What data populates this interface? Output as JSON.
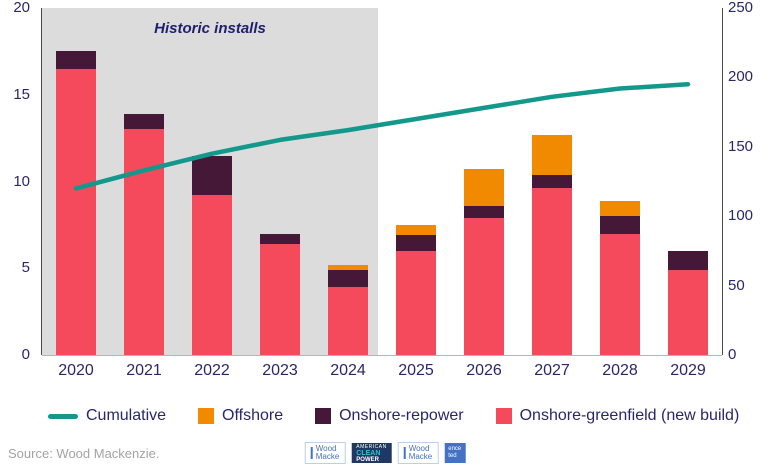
{
  "chart_data": {
    "type": "bar",
    "subtype": "stacked-bar-with-line",
    "categories": [
      "2020",
      "2021",
      "2022",
      "2023",
      "2024",
      "2025",
      "2026",
      "2027",
      "2028",
      "2029"
    ],
    "series": [
      {
        "name": "Onshore-greenfield (new build)",
        "color": "#f5495c",
        "values": [
          16.5,
          13.0,
          9.2,
          6.4,
          3.9,
          6.0,
          7.9,
          9.6,
          7.0,
          4.9
        ]
      },
      {
        "name": "Onshore-repower",
        "color": "#451838",
        "values": [
          1.0,
          0.9,
          2.3,
          0.6,
          1.0,
          0.9,
          0.7,
          0.8,
          1.0,
          1.1
        ]
      },
      {
        "name": "Offshore",
        "color": "#f18a00",
        "values": [
          0,
          0,
          0,
          0,
          0.3,
          0.6,
          2.1,
          2.3,
          0.9,
          0
        ]
      }
    ],
    "line_series": {
      "name": "Cumulative",
      "color": "#12998c",
      "axis": "right",
      "values": [
        120,
        133,
        145,
        155,
        162,
        170,
        178,
        186,
        192,
        195
      ]
    },
    "left_axis": {
      "min": 0,
      "max": 20,
      "ticks": [
        "20",
        "15",
        "10",
        "5",
        "0"
      ]
    },
    "right_axis": {
      "min": 0,
      "max": 250,
      "ticks": [
        "250",
        "200",
        "150",
        "100",
        "50",
        "0"
      ]
    },
    "historic_region": {
      "label": "Historic installs",
      "from_category": "2020",
      "to_category": "2024"
    },
    "grid": false,
    "legend_position": "bottom"
  },
  "legend": {
    "items": [
      {
        "label": "Cumulative",
        "type": "line",
        "color": "#12998c"
      },
      {
        "label": "Offshore",
        "type": "square",
        "color": "#f18a00"
      },
      {
        "label": "Onshore-repower",
        "type": "square",
        "color": "#451838"
      },
      {
        "label": "Onshore-greenfield (new build)",
        "type": "square",
        "color": "#f5495c"
      }
    ]
  },
  "footer": {
    "source": "Source: Wood Mackenzie.",
    "logos": {
      "wood_mackenzie_1": {
        "line1": "Wood",
        "line2": "Macke"
      },
      "acp": {
        "line1": "AMERICAN",
        "line2": "CLEAN",
        "line3": "POWER"
      },
      "wood_mackenzie_2": {
        "line1": "Wood",
        "line2": "Macke"
      },
      "badge": {
        "line1": "ence",
        "line2": "ted"
      }
    }
  }
}
